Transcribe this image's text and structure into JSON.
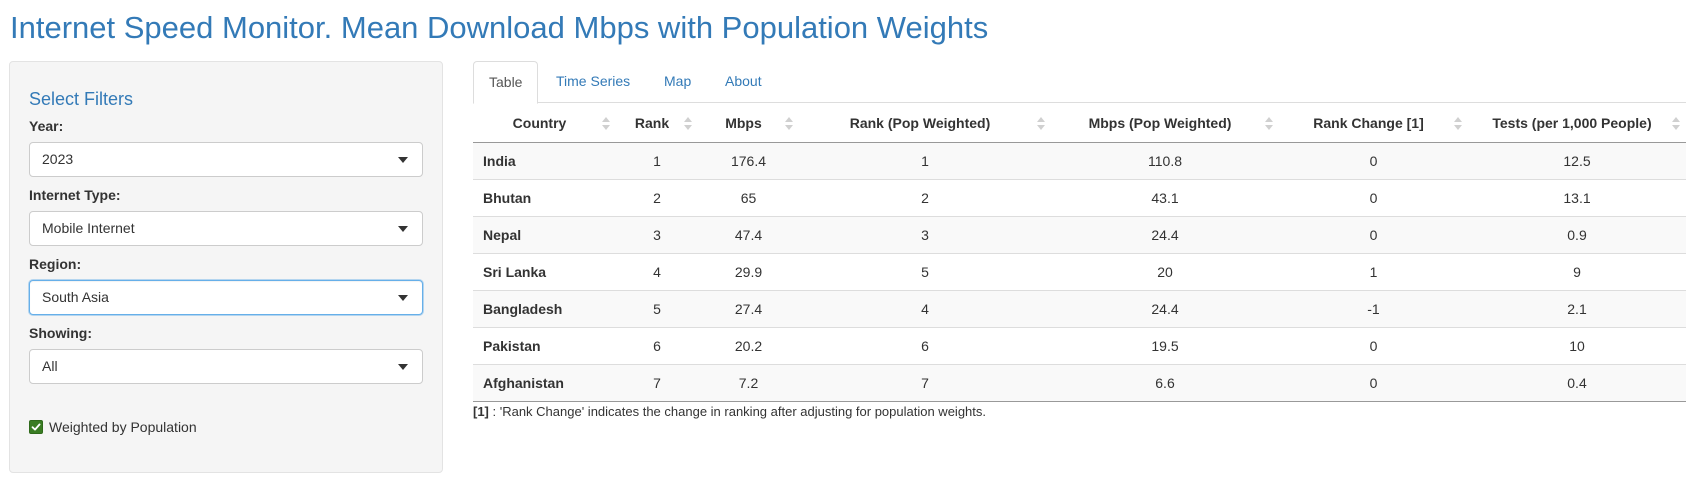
{
  "page": {
    "title": "Internet Speed Monitor. Mean Download Mbps with Population Weights"
  },
  "sidebar": {
    "title": "Select Filters",
    "filters": [
      {
        "label": "Year:",
        "value": "2023"
      },
      {
        "label": "Internet Type:",
        "value": "Mobile Internet"
      },
      {
        "label": "Region:",
        "value": "South Asia"
      },
      {
        "label": "Showing:",
        "value": "All"
      }
    ],
    "checkbox": {
      "label": "Weighted by Population",
      "checked": true
    }
  },
  "tabs": [
    {
      "label": "Table",
      "active": true
    },
    {
      "label": "Time Series",
      "active": false
    },
    {
      "label": "Map",
      "active": false
    },
    {
      "label": "About",
      "active": false
    }
  ],
  "table": {
    "columns": [
      "Country",
      "Rank",
      "Mbps",
      "Rank (Pop Weighted)",
      "Mbps (Pop Weighted)",
      "Rank Change [1]",
      "Tests (per 1,000 People)"
    ],
    "rows": [
      [
        "India",
        "1",
        "176.4",
        "1",
        "110.8",
        "0",
        "12.5"
      ],
      [
        "Bhutan",
        "2",
        "65",
        "2",
        "43.1",
        "0",
        "13.1"
      ],
      [
        "Nepal",
        "3",
        "47.4",
        "3",
        "24.4",
        "0",
        "0.9"
      ],
      [
        "Sri Lanka",
        "4",
        "29.9",
        "5",
        "20",
        "1",
        "9"
      ],
      [
        "Bangladesh",
        "5",
        "27.4",
        "4",
        "24.4",
        "-1",
        "2.1"
      ],
      [
        "Pakistan",
        "6",
        "20.2",
        "6",
        "19.5",
        "0",
        "10"
      ],
      [
        "Afghanistan",
        "7",
        "7.2",
        "7",
        "6.6",
        "0",
        "0.4"
      ]
    ]
  },
  "footnote": {
    "marker": "[1]",
    "text": " : 'Rank Change' indicates the change in ranking after adjusting for population weights."
  },
  "colors": {
    "accent": "#337ab7",
    "checkbox": "#3a7d23"
  }
}
